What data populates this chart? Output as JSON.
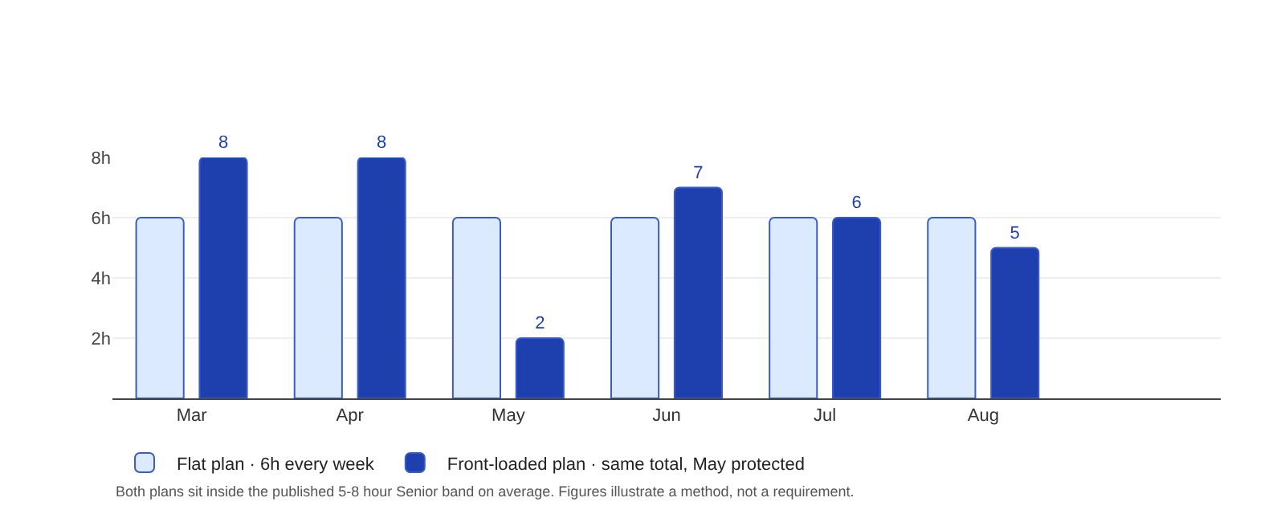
{
  "chart_data": {
    "type": "bar",
    "categories": [
      "Mar",
      "Apr",
      "May",
      "Jun",
      "Jul",
      "Aug"
    ],
    "series": [
      {
        "name": "Flat plan · 6h every week",
        "color": "#dbeafe",
        "values": [
          6,
          6,
          6,
          6,
          6,
          6
        ]
      },
      {
        "name": "Front-loaded plan · same total, May protected",
        "color": "#1e40af",
        "values": [
          8,
          8,
          2,
          7,
          6,
          5
        ],
        "value_labels": [
          "8",
          "8",
          "2",
          "7",
          "6",
          "5"
        ]
      }
    ],
    "ylim": [
      0,
      8
    ],
    "yticks": [
      {
        "value": 2,
        "label": "2h"
      },
      {
        "value": 4,
        "label": "4h"
      },
      {
        "value": 6,
        "label": "6h"
      },
      {
        "value": 8,
        "label": "8h"
      }
    ],
    "grid": "y",
    "legend": "bottom left",
    "annotations": [
      "Both plans sit inside the published 5-8 hour Senior band on average. Figures illustrate a method, not a requirement."
    ]
  }
}
